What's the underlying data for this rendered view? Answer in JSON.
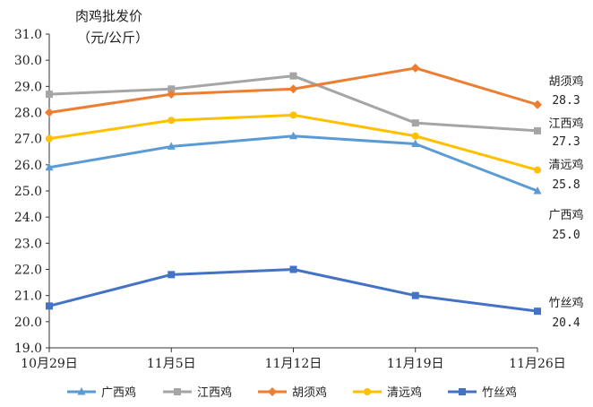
{
  "chart_data": {
    "type": "line",
    "ylabel_line1": "肉鸡批发价",
    "ylabel_line2": "（元/公斤）",
    "categories": [
      "10月29日",
      "11月5日",
      "11月12日",
      "11月19日",
      "11月26日"
    ],
    "ylim": [
      19.0,
      31.0
    ],
    "ystep": 1.0,
    "ytick_decimals": 1,
    "grid": false,
    "legend_position": "bottom",
    "series": [
      {
        "name": "广西鸡",
        "values": [
          25.9,
          26.7,
          27.1,
          26.8,
          25.0
        ],
        "color": "#5b9bd5",
        "marker": "triangle",
        "end_label": "广西鸡",
        "end_value": "25.0"
      },
      {
        "name": "江西鸡",
        "values": [
          28.7,
          28.9,
          29.4,
          27.6,
          27.3
        ],
        "color": "#a5a5a5",
        "marker": "square",
        "end_label": "江西鸡",
        "end_value": "27.3"
      },
      {
        "name": "胡须鸡",
        "values": [
          28.0,
          28.7,
          28.9,
          29.7,
          28.3
        ],
        "color": "#ed7d31",
        "marker": "diamond",
        "end_label": "胡须鸡",
        "end_value": "28.3"
      },
      {
        "name": "清远鸡",
        "values": [
          27.0,
          27.7,
          27.9,
          27.1,
          25.8
        ],
        "color": "#ffc000",
        "marker": "circle",
        "end_label": "清远鸡",
        "end_value": "25.8"
      },
      {
        "name": "竹丝鸡",
        "values": [
          20.6,
          21.8,
          22.0,
          21.0,
          20.4
        ],
        "color": "#4472c4",
        "marker": "square",
        "end_label": "竹丝鸡",
        "end_value": "20.4"
      }
    ]
  }
}
